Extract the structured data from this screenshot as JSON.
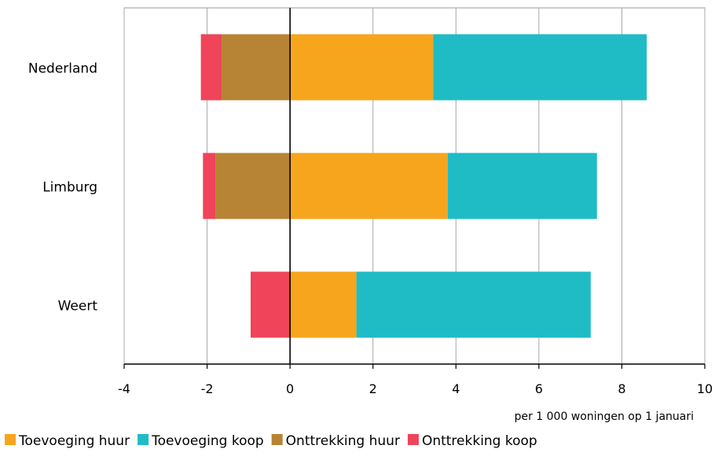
{
  "chart_data": {
    "type": "bar",
    "orientation": "horizontal",
    "stacked": true,
    "title": "",
    "xlabel": "per 1 000 woningen op 1 januari",
    "ylabel": "",
    "xlim": [
      -4,
      10
    ],
    "xticks": [
      -4,
      -2,
      0,
      2,
      4,
      6,
      8,
      10
    ],
    "xtick_labels": [
      "-4",
      "-2",
      "0",
      "2",
      "4",
      "6",
      "8",
      "10"
    ],
    "grid": "vertical",
    "legend_position": "bottom",
    "categories": [
      "Nederland",
      "Limburg",
      "Weert"
    ],
    "series": [
      {
        "name": "Toevoeging huur",
        "color": "#f7a51d",
        "values": [
          3.45,
          3.8,
          1.6
        ]
      },
      {
        "name": "Toevoeging koop",
        "color": "#1fbcc6",
        "values": [
          5.15,
          3.6,
          5.65
        ]
      },
      {
        "name": "Onttrekking huur",
        "color": "#b68434",
        "values": [
          -1.65,
          -1.8,
          0
        ]
      },
      {
        "name": "Onttrekking koop",
        "color": "#ef4459",
        "values": [
          -0.5,
          -0.3,
          -0.95
        ]
      }
    ]
  }
}
